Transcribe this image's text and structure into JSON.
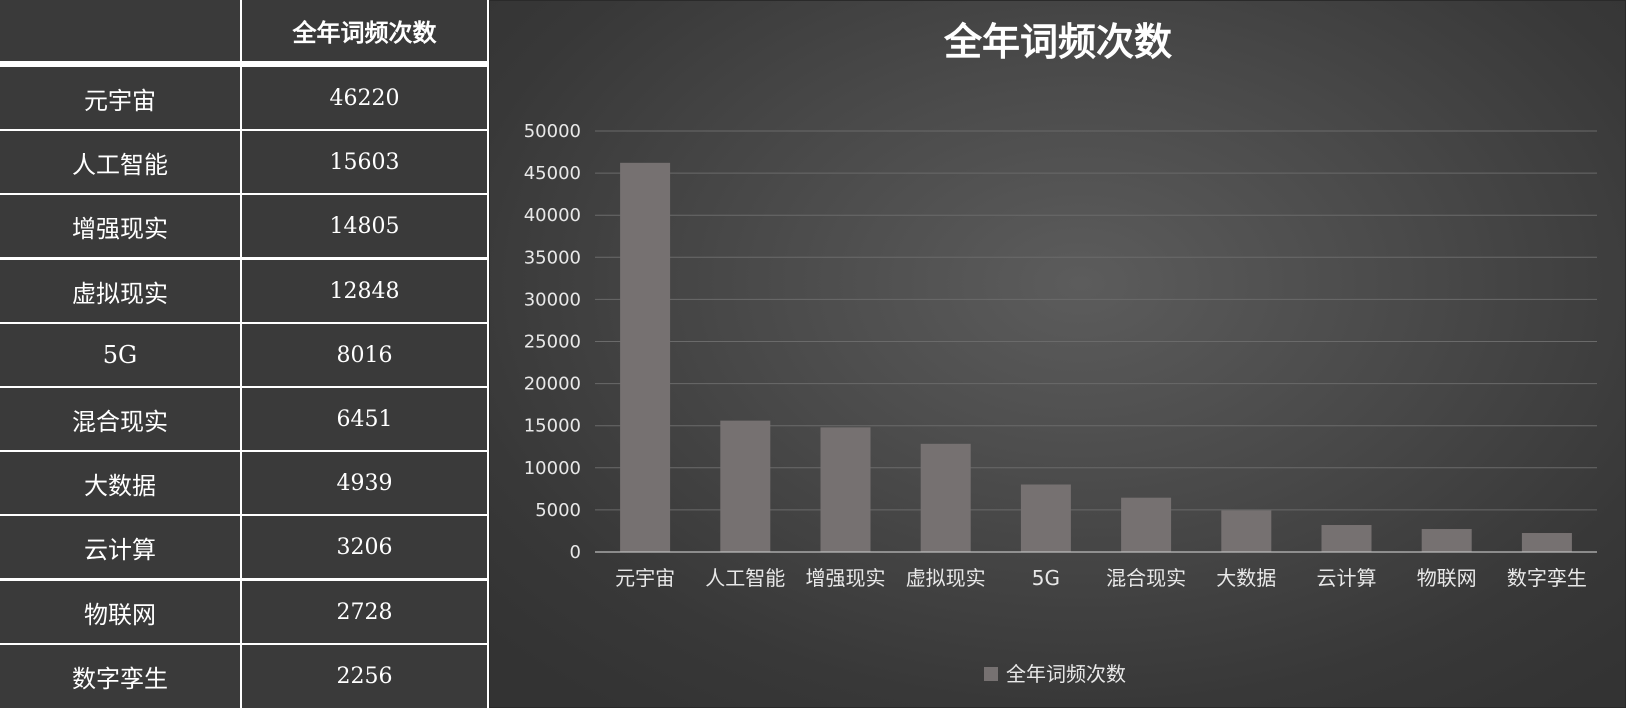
{
  "table": {
    "header": [
      "",
      "全年词频次数"
    ],
    "rows": [
      {
        "label": "元宇宙",
        "value": "46220"
      },
      {
        "label": "人工智能",
        "value": "15603"
      },
      {
        "label": "增强现实",
        "value": "14805"
      },
      {
        "label": "虚拟现实",
        "value": "12848"
      },
      {
        "label": "5G",
        "value": "8016"
      },
      {
        "label": "混合现实",
        "value": "6451"
      },
      {
        "label": "大数据",
        "value": "4939"
      },
      {
        "label": "云计算",
        "value": "3206"
      },
      {
        "label": "物联网",
        "value": "2728"
      },
      {
        "label": "数字孪生",
        "value": "2256"
      }
    ]
  },
  "colors": {
    "bar": "#767171",
    "panel_bg": "#484848",
    "table_cell": "#3a3a3a"
  },
  "chart_data": {
    "type": "bar",
    "title": "全年词频次数",
    "categories": [
      "元宇宙",
      "人工智能",
      "增强现实",
      "虚拟现实",
      "5G",
      "混合现实",
      "大数据",
      "云计算",
      "物联网",
      "数字孪生"
    ],
    "series": [
      {
        "name": "全年词频次数",
        "values": [
          46220,
          15603,
          14805,
          12848,
          8016,
          6451,
          4939,
          3206,
          2728,
          2256
        ]
      }
    ],
    "ylim": [
      0,
      50000
    ],
    "yticks": [
      0,
      5000,
      10000,
      15000,
      20000,
      25000,
      30000,
      35000,
      40000,
      45000,
      50000
    ],
    "xlabel": "",
    "ylabel": "",
    "grid": true,
    "legend": "bottom"
  }
}
